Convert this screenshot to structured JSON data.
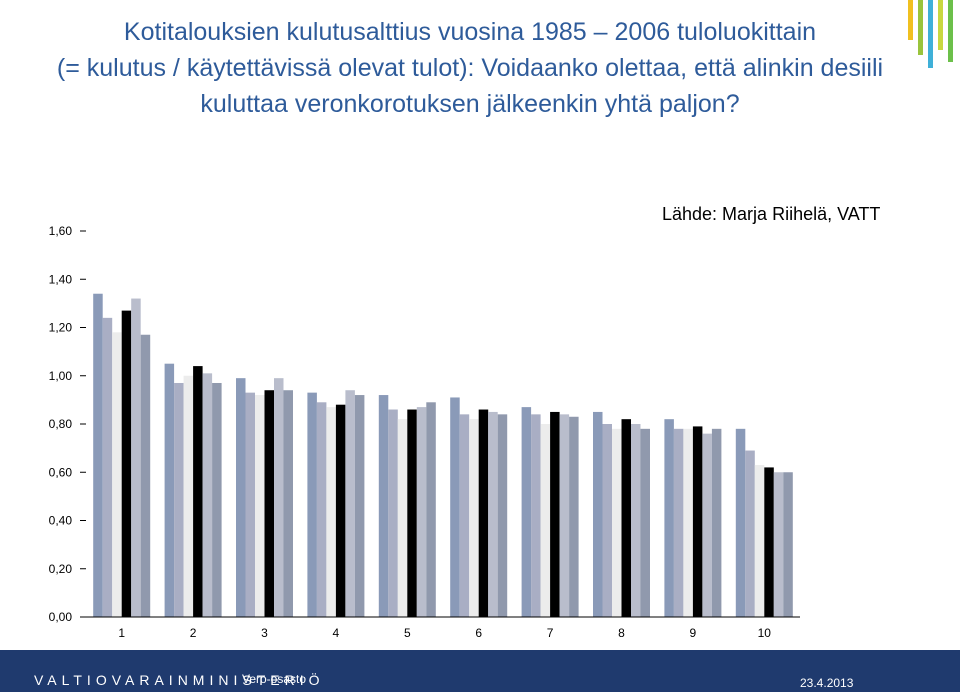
{
  "title": {
    "line1": "Kotitalouksien kulutusalttius vuosina 1985 – 2006 tuloluokittain",
    "line2": "(= kulutus / käytettävissä olevat tulot): Voidaanko olettaa, että alinkin desiili",
    "line3": "kuluttaa veronkorotuksen jälkeenkin yhtä paljon?"
  },
  "source_note": "Lähde: Marja Riihelä, VATT",
  "footer": {
    "ministry": "VALTIOVARAINMINISTERIÖ",
    "department": "Vero-osasto",
    "date": "23.4.2013"
  },
  "colors": {
    "title": "#2e5b9a",
    "footer_bg": "#1f3a6e",
    "bar_colors": [
      "#8a9ab8",
      "#a9aec4",
      "#ececec",
      "#000000",
      "#b9bdcc",
      "#9099ad"
    ],
    "deco_bars": [
      "#f0c020",
      "#9ac43c",
      "#3fb0d8",
      "#c8d840",
      "#6cc04a"
    ]
  },
  "chart_data": {
    "type": "bar",
    "categories": [
      "1",
      "2",
      "3",
      "4",
      "5",
      "6",
      "7",
      "8",
      "9",
      "10"
    ],
    "ylim": [
      0,
      1.6
    ],
    "yticks": [
      "0,00",
      "0,20",
      "0,40",
      "0,60",
      "0,80",
      "1,00",
      "1,20",
      "1,40",
      "1,60"
    ],
    "ytick_values": [
      0,
      0.2,
      0.4,
      0.6,
      0.8,
      1.0,
      1.2,
      1.4,
      1.6
    ],
    "grid": false,
    "legend": "none",
    "series": [
      {
        "values": [
          1.34,
          1.05,
          0.99,
          0.93,
          0.92,
          0.91,
          0.87,
          0.85,
          0.82,
          0.78
        ]
      },
      {
        "values": [
          1.24,
          0.97,
          0.93,
          0.89,
          0.86,
          0.84,
          0.84,
          0.8,
          0.78,
          0.69
        ]
      },
      {
        "values": [
          1.18,
          1.0,
          0.92,
          0.87,
          0.82,
          0.82,
          0.8,
          0.78,
          0.78,
          0.63
        ]
      },
      {
        "values": [
          1.27,
          1.04,
          0.94,
          0.88,
          0.86,
          0.86,
          0.85,
          0.82,
          0.79,
          0.62
        ]
      },
      {
        "values": [
          1.32,
          1.01,
          0.99,
          0.94,
          0.87,
          0.85,
          0.84,
          0.8,
          0.76,
          0.6
        ]
      },
      {
        "values": [
          1.17,
          0.97,
          0.94,
          0.92,
          0.89,
          0.84,
          0.83,
          0.78,
          0.78,
          0.6
        ]
      }
    ]
  }
}
